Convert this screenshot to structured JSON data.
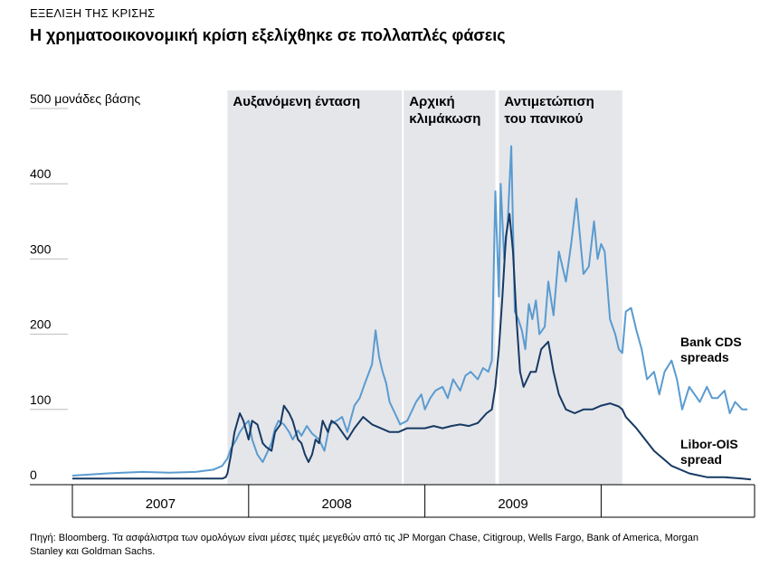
{
  "header": {
    "kicker": "ΕΞΕΛΙΞΗ ΤΗΣ ΚΡΙΣΗΣ",
    "title": "Η χρηματοοικονομική κρίση εξελίχθηκε σε πολλαπλές φάσεις"
  },
  "source": "Πηγή: Bloomberg. Τα ασφάλιστρα των ομολόγων είναι μέσες τιμές μεγεθών από τις JP Morgan Chase, Citigroup, Wells Fargo, Bank of America, Morgan Stanley και Goldman Sachs.",
  "colors": {
    "libor": "#173a63",
    "cds": "#5a9bd0",
    "band": "#e5e6ea",
    "grid": "#bdbdbd"
  },
  "chart_data": {
    "type": "line",
    "title": "",
    "ylabel": "500 μονάδες βάσης",
    "ylim": [
      0,
      500
    ],
    "xlim": [
      2006.0,
      2009.85
    ],
    "y_ticks": [
      {
        "value": 0,
        "label": "0"
      },
      {
        "value": 100,
        "label": "100"
      },
      {
        "value": 200,
        "label": "200"
      },
      {
        "value": 300,
        "label": "300"
      },
      {
        "value": 400,
        "label": "400"
      },
      {
        "value": 500,
        "label": "500 μονάδες βάσης"
      }
    ],
    "x_ticks": [
      2006.0,
      2007.0,
      2008.0,
      2009.0
    ],
    "x_tick_labels": [
      {
        "label": "2007",
        "at": 2006.5
      },
      {
        "label": "2008",
        "at": 2007.5
      },
      {
        "label": "2009",
        "at": 2008.5
      }
    ],
    "phases": [
      {
        "label_lines": [
          "Αυξανόμενη ένταση"
        ],
        "start": 2006.88,
        "end": 2007.87
      },
      {
        "label_lines": [
          "Αρχική",
          "κλιμάκωση"
        ],
        "start": 2007.88,
        "end": 2008.4
      },
      {
        "label_lines": [
          "Αντιμετώπιση",
          "του πανικού"
        ],
        "start": 2008.42,
        "end": 2009.12
      }
    ],
    "series": [
      {
        "name": "Bank CDS spreads",
        "label_lines": [
          "Bank CDS",
          "spreads"
        ],
        "x": [
          2006.0,
          2006.2,
          2006.4,
          2006.55,
          2006.7,
          2006.8,
          2006.85,
          2006.88,
          2006.9,
          2006.93,
          2006.95,
          2006.98,
          2007.0,
          2007.02,
          2007.05,
          2007.08,
          2007.1,
          2007.13,
          2007.15,
          2007.17,
          2007.2,
          2007.23,
          2007.25,
          2007.28,
          2007.3,
          2007.33,
          2007.36,
          2007.4,
          2007.43,
          2007.46,
          2007.5,
          2007.53,
          2007.56,
          2007.6,
          2007.63,
          2007.66,
          2007.7,
          2007.72,
          2007.74,
          2007.76,
          2007.78,
          2007.8,
          2007.83,
          2007.86,
          2007.9,
          2007.92,
          2007.95,
          2007.98,
          2008.0,
          2008.03,
          2008.06,
          2008.1,
          2008.13,
          2008.16,
          2008.2,
          2008.23,
          2008.26,
          2008.3,
          2008.33,
          2008.36,
          2008.38,
          2008.4,
          2008.42,
          2008.43,
          2008.45,
          2008.47,
          2008.49,
          2008.51,
          2008.53,
          2008.55,
          2008.57,
          2008.59,
          2008.61,
          2008.63,
          2008.65,
          2008.68,
          2008.7,
          2008.73,
          2008.76,
          2008.8,
          2008.83,
          2008.86,
          2008.9,
          2008.93,
          2008.96,
          2008.98,
          2009.0,
          2009.02,
          2009.05,
          2009.08,
          2009.1,
          2009.12,
          2009.14,
          2009.17,
          2009.2,
          2009.23,
          2009.26,
          2009.3,
          2009.33,
          2009.36,
          2009.4,
          2009.43,
          2009.46,
          2009.5,
          2009.53,
          2009.56,
          2009.6,
          2009.63,
          2009.66,
          2009.7,
          2009.73,
          2009.76,
          2009.8,
          2009.83
        ],
        "values": [
          12,
          15,
          17,
          16,
          17,
          20,
          25,
          35,
          48,
          60,
          70,
          80,
          85,
          60,
          40,
          30,
          40,
          55,
          75,
          85,
          80,
          70,
          60,
          72,
          65,
          78,
          68,
          60,
          45,
          80,
          85,
          90,
          70,
          105,
          115,
          135,
          160,
          205,
          170,
          150,
          135,
          110,
          95,
          80,
          85,
          95,
          110,
          120,
          100,
          115,
          125,
          130,
          115,
          140,
          125,
          145,
          150,
          140,
          155,
          150,
          165,
          390,
          250,
          400,
          300,
          350,
          450,
          230,
          220,
          205,
          180,
          240,
          220,
          245,
          200,
          210,
          270,
          225,
          310,
          270,
          320,
          380,
          280,
          290,
          350,
          300,
          320,
          310,
          220,
          200,
          180,
          175,
          230,
          235,
          205,
          180,
          140,
          150,
          120,
          150,
          165,
          140,
          100,
          130,
          120,
          110,
          130,
          115,
          115,
          125,
          95,
          110,
          100,
          100
        ]
      },
      {
        "name": "Libor-OIS spread",
        "label_lines": [
          "Libor-OIS",
          "spread"
        ],
        "x": [
          2006.0,
          2006.2,
          2006.4,
          2006.55,
          2006.7,
          2006.8,
          2006.85,
          2006.87,
          2006.88,
          2006.9,
          2006.92,
          2006.95,
          2006.97,
          2007.0,
          2007.02,
          2007.05,
          2007.08,
          2007.1,
          2007.13,
          2007.15,
          2007.18,
          2007.2,
          2007.23,
          2007.25,
          2007.28,
          2007.3,
          2007.32,
          2007.34,
          2007.36,
          2007.38,
          2007.4,
          2007.42,
          2007.45,
          2007.47,
          2007.5,
          2007.53,
          2007.56,
          2007.6,
          2007.65,
          2007.7,
          2007.75,
          2007.8,
          2007.85,
          2007.9,
          2007.95,
          2008.0,
          2008.05,
          2008.1,
          2008.15,
          2008.2,
          2008.25,
          2008.3,
          2008.35,
          2008.38,
          2008.4,
          2008.42,
          2008.44,
          2008.46,
          2008.48,
          2008.5,
          2008.52,
          2008.54,
          2008.56,
          2008.58,
          2008.6,
          2008.63,
          2008.66,
          2008.7,
          2008.73,
          2008.76,
          2008.8,
          2008.85,
          2008.9,
          2008.95,
          2009.0,
          2009.05,
          2009.1,
          2009.12,
          2009.14,
          2009.2,
          2009.3,
          2009.4,
          2009.5,
          2009.6,
          2009.7,
          2009.8,
          2009.85
        ],
        "values": [
          8,
          8,
          8,
          8,
          8,
          8,
          8,
          10,
          15,
          40,
          70,
          95,
          85,
          60,
          85,
          80,
          55,
          50,
          45,
          70,
          80,
          105,
          95,
          85,
          60,
          55,
          40,
          30,
          40,
          60,
          55,
          85,
          70,
          85,
          80,
          70,
          60,
          75,
          90,
          80,
          75,
          70,
          70,
          75,
          75,
          75,
          78,
          75,
          78,
          80,
          78,
          82,
          95,
          100,
          130,
          180,
          250,
          330,
          360,
          310,
          220,
          150,
          130,
          140,
          150,
          150,
          180,
          190,
          150,
          120,
          100,
          95,
          100,
          100,
          105,
          108,
          104,
          100,
          90,
          75,
          45,
          25,
          15,
          10,
          10,
          8,
          7
        ]
      }
    ],
    "grid": true,
    "legend": "inline-right"
  }
}
